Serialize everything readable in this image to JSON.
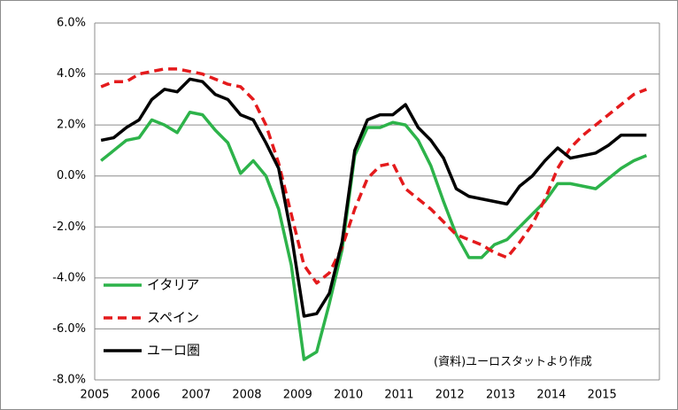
{
  "chart_data": {
    "type": "line",
    "annotation": "(資料)ユーロスタットより作成",
    "x": [
      2005.125,
      2005.375,
      2005.625,
      2005.875,
      2006.125,
      2006.375,
      2006.625,
      2006.875,
      2007.125,
      2007.375,
      2007.625,
      2007.875,
      2008.125,
      2008.375,
      2008.625,
      2008.875,
      2009.125,
      2009.375,
      2009.625,
      2009.875,
      2010.125,
      2010.375,
      2010.625,
      2010.875,
      2011.125,
      2011.375,
      2011.625,
      2011.875,
      2012.125,
      2012.375,
      2012.625,
      2012.875,
      2013.125,
      2013.375,
      2013.625,
      2013.875,
      2014.125,
      2014.375,
      2014.625,
      2014.875,
      2015.125,
      2015.375,
      2015.625,
      2015.875
    ],
    "series": [
      {
        "name": "イタリア",
        "color": "#2db34a",
        "dash": false,
        "values": [
          0.6,
          1.0,
          1.4,
          1.5,
          2.2,
          2.0,
          1.7,
          2.5,
          2.4,
          1.8,
          1.3,
          0.1,
          0.6,
          0.0,
          -1.3,
          -3.5,
          -7.2,
          -6.9,
          -5.0,
          -2.9,
          0.8,
          1.9,
          1.9,
          2.1,
          2.0,
          1.4,
          0.4,
          -1.0,
          -2.3,
          -3.2,
          -3.2,
          -2.7,
          -2.5,
          -2.0,
          -1.5,
          -1.0,
          -0.3,
          -0.3,
          -0.4,
          -0.5,
          -0.1,
          0.3,
          0.6,
          0.8
        ]
      },
      {
        "name": "スペイン",
        "color": "#e41a1c",
        "dash": true,
        "values": [
          3.5,
          3.7,
          3.7,
          4.0,
          4.1,
          4.2,
          4.2,
          4.1,
          4.0,
          3.8,
          3.6,
          3.5,
          3.0,
          2.0,
          0.5,
          -1.5,
          -3.5,
          -4.2,
          -3.8,
          -2.8,
          -1.3,
          -0.1,
          0.4,
          0.5,
          -0.5,
          -0.9,
          -1.3,
          -1.8,
          -2.3,
          -2.5,
          -2.7,
          -3.0,
          -3.2,
          -2.6,
          -1.9,
          -0.9,
          0.3,
          1.1,
          1.6,
          2.0,
          2.4,
          2.8,
          3.2,
          3.4
        ]
      },
      {
        "name": "ユーロ圏",
        "color": "#000000",
        "dash": false,
        "values": [
          1.4,
          1.5,
          1.9,
          2.2,
          3.0,
          3.4,
          3.3,
          3.8,
          3.7,
          3.2,
          3.0,
          2.4,
          2.2,
          1.3,
          0.3,
          -2.3,
          -5.5,
          -5.4,
          -4.6,
          -2.6,
          1.0,
          2.2,
          2.4,
          2.4,
          2.8,
          1.9,
          1.4,
          0.7,
          -0.5,
          -0.8,
          -0.9,
          -1.0,
          -1.1,
          -0.4,
          0.0,
          0.6,
          1.1,
          0.7,
          0.8,
          0.9,
          1.2,
          1.6,
          1.6,
          1.6
        ]
      }
    ],
    "xlim": [
      2005,
      2016.13
    ],
    "xticks": [
      2005,
      2006,
      2007,
      2008,
      2009,
      2010,
      2011,
      2012,
      2013,
      2014,
      2015
    ],
    "ylim": [
      -8,
      6
    ],
    "yticks": [
      {
        "value": -8,
        "label": "-8.0%"
      },
      {
        "value": -6,
        "label": "-6.0%"
      },
      {
        "value": -4,
        "label": "-4.0%"
      },
      {
        "value": -2,
        "label": "-2.0%"
      },
      {
        "value": 0,
        "label": "0.0%"
      },
      {
        "value": 2,
        "label": "2.0%"
      },
      {
        "value": 4,
        "label": "4.0%"
      },
      {
        "value": 6,
        "label": "6.0%"
      }
    ],
    "grid": true
  }
}
